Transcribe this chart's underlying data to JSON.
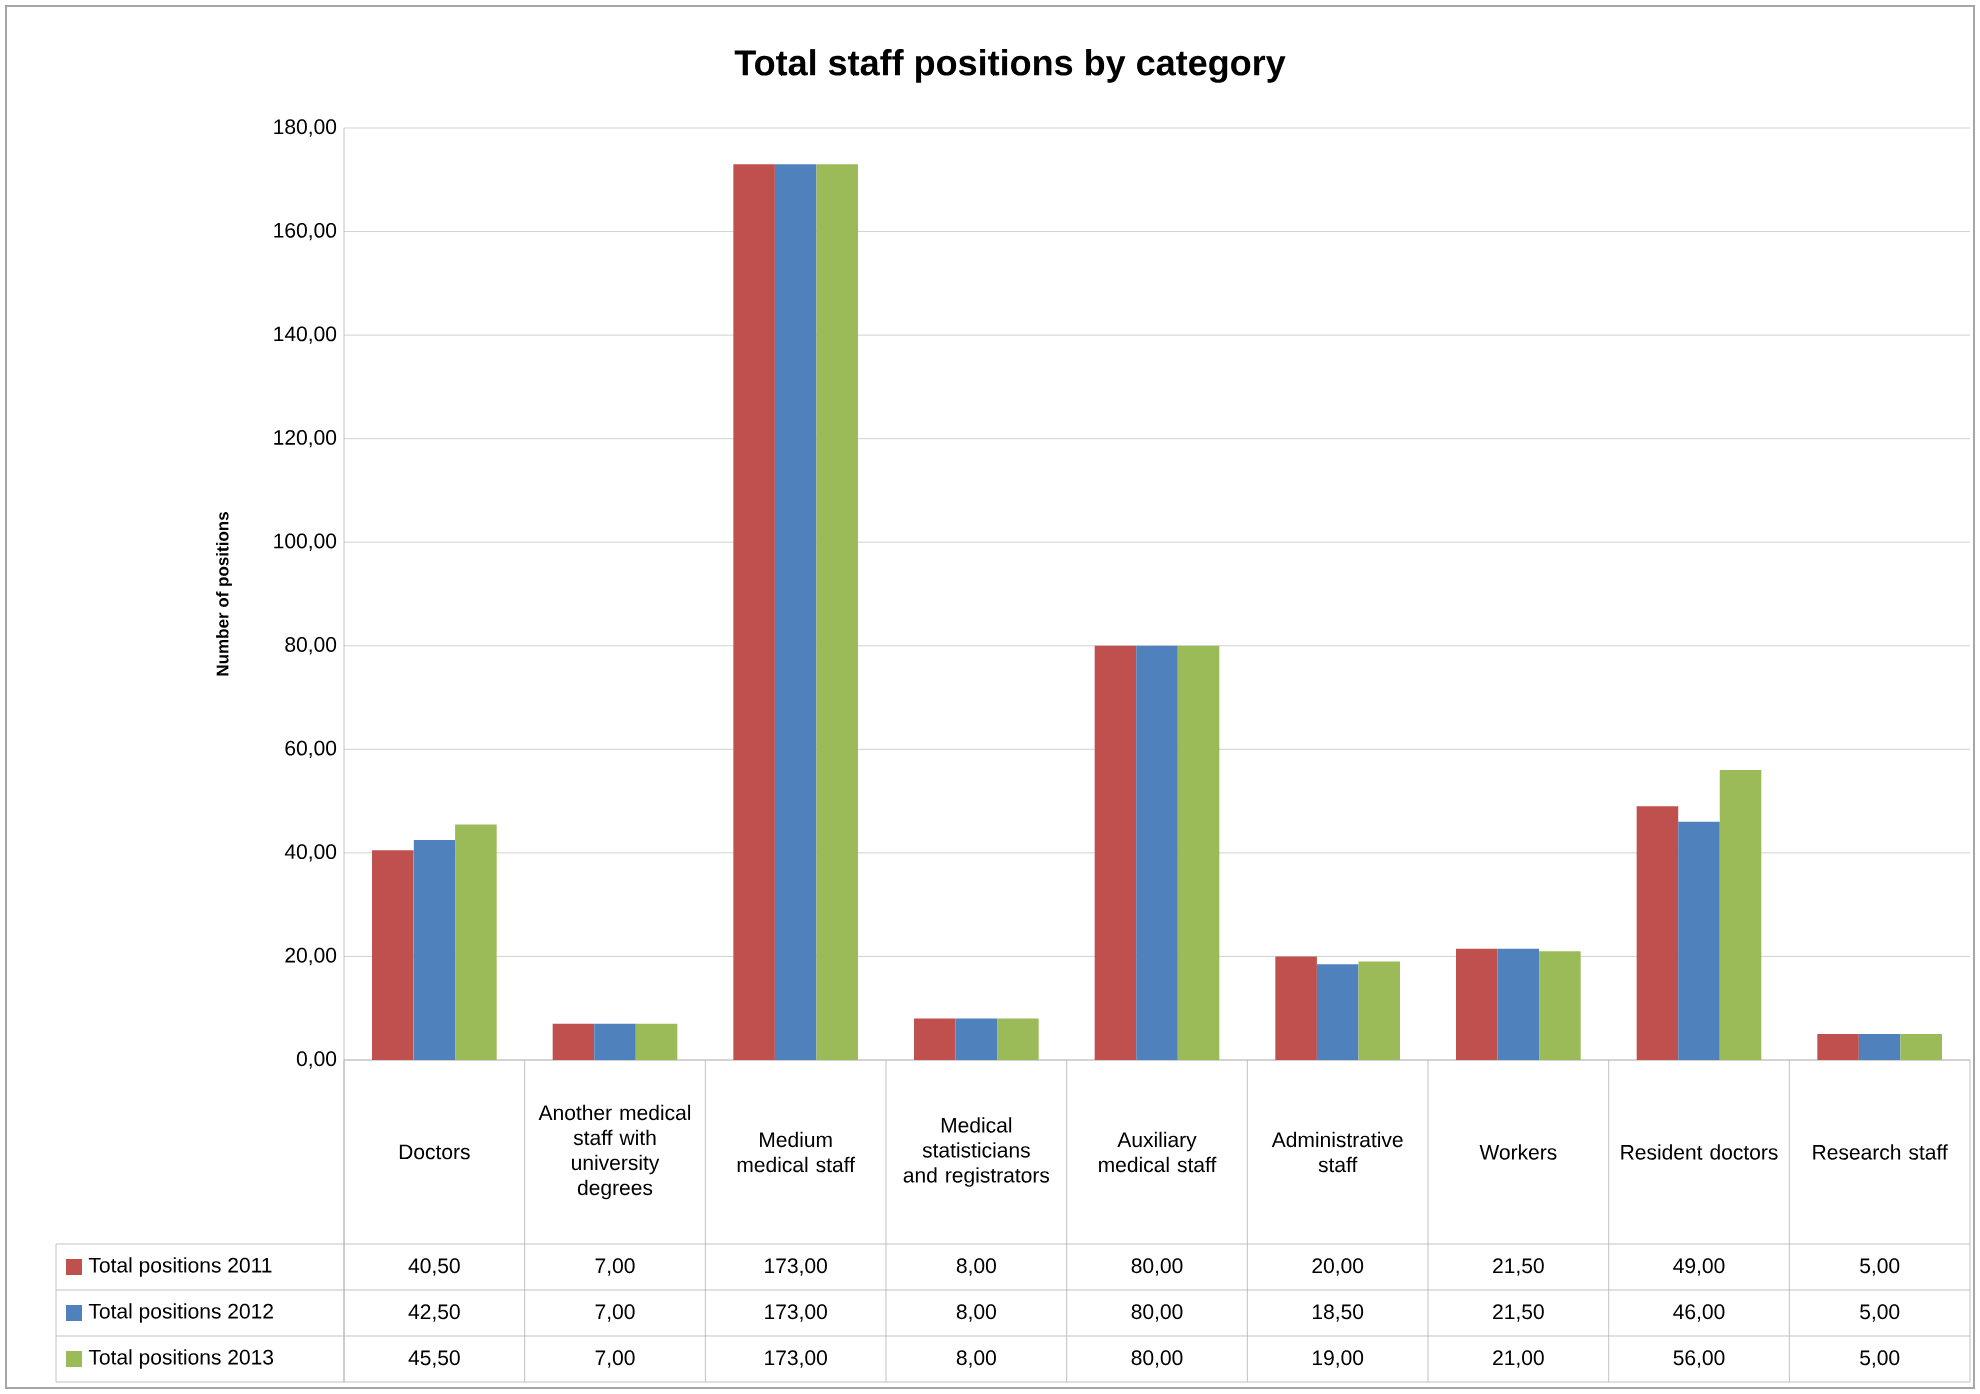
{
  "chart_data": {
    "type": "bar",
    "title": "Total staff positions by category",
    "ylabel": "Number of positions",
    "categories": [
      "Doctors",
      "Another medical staff with university degrees",
      "Medium medical staff",
      "Medical statisticians and registrators",
      "Auxiliary medical staff",
      "Administrative staff",
      "Workers",
      "Resident doctors",
      "Research staff"
    ],
    "series": [
      {
        "name": "Total positions 2011",
        "color": "#c0504d",
        "values": [
          40.5,
          7,
          173,
          8,
          80,
          20,
          21.5,
          49,
          5
        ],
        "value_labels": [
          "40,50",
          "7,00",
          "173,00",
          "8,00",
          "80,00",
          "20,00",
          "21,50",
          "49,00",
          "5,00"
        ]
      },
      {
        "name": "Total positions 2012",
        "color": "#4f81bd",
        "values": [
          42.5,
          7,
          173,
          8,
          80,
          18.5,
          21.5,
          46,
          5
        ],
        "value_labels": [
          "42,50",
          "7,00",
          "173,00",
          "8,00",
          "80,00",
          "18,50",
          "21,50",
          "46,00",
          "5,00"
        ]
      },
      {
        "name": "Total positions 2013",
        "color": "#9bbb59",
        "values": [
          45.5,
          7,
          173,
          8,
          80,
          19,
          21,
          56,
          5
        ],
        "value_labels": [
          "45,50",
          "7,00",
          "173,00",
          "8,00",
          "80,00",
          "19,00",
          "21,00",
          "56,00",
          "5,00"
        ]
      }
    ],
    "ylim": [
      0,
      180
    ],
    "yticks": [
      {
        "value": 0,
        "label": "0,00"
      },
      {
        "value": 20,
        "label": "20,00"
      },
      {
        "value": 40,
        "label": "40,00"
      },
      {
        "value": 60,
        "label": "60,00"
      },
      {
        "value": 80,
        "label": "80,00"
      },
      {
        "value": 100,
        "label": "100,00"
      },
      {
        "value": 120,
        "label": "120,00"
      },
      {
        "value": 140,
        "label": "140,00"
      },
      {
        "value": 160,
        "label": "160,00"
      },
      {
        "value": 180,
        "label": "180,00"
      }
    ],
    "grid": "y",
    "legend": "bottom"
  }
}
